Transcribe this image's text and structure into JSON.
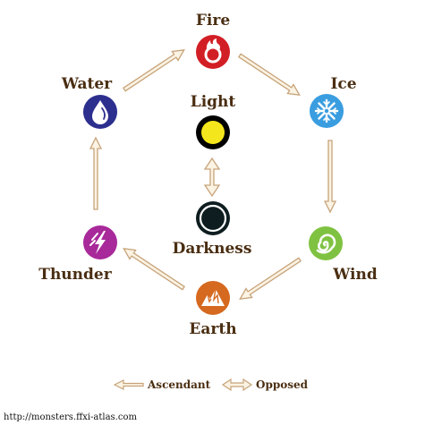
{
  "elements": {
    "fire": "Fire",
    "ice": "Ice",
    "wind": "Wind",
    "earth": "Earth",
    "thunder": "Thunder",
    "water": "Water",
    "light": "Light",
    "darkness": "Darkness"
  },
  "legend": {
    "ascendant": "Ascendant",
    "opposed": "Opposed"
  },
  "footer": "http://monsters.ffxi-atlas.com",
  "colors": {
    "fire": "#d21f26",
    "ice": "#3a9de0",
    "wind": "#7fc241",
    "earth": "#d5691f",
    "thunder": "#a8299a",
    "water": "#2d2f8e",
    "light": "#f4e61c",
    "darkness": "#0e1d1f",
    "arrow_fill": "#fbf3e3",
    "arrow_stroke": "#c7a37a",
    "label": "#4a2e12"
  },
  "icons": {
    "fire": "flame-ring-icon",
    "ice": "snowflake-icon",
    "wind": "swirl-icon",
    "earth": "mountain-icon",
    "thunder": "lightning-bolt-icon",
    "water": "water-drop-icon",
    "light": "sun-disc-icon",
    "darkness": "dark-crescent-icon"
  }
}
